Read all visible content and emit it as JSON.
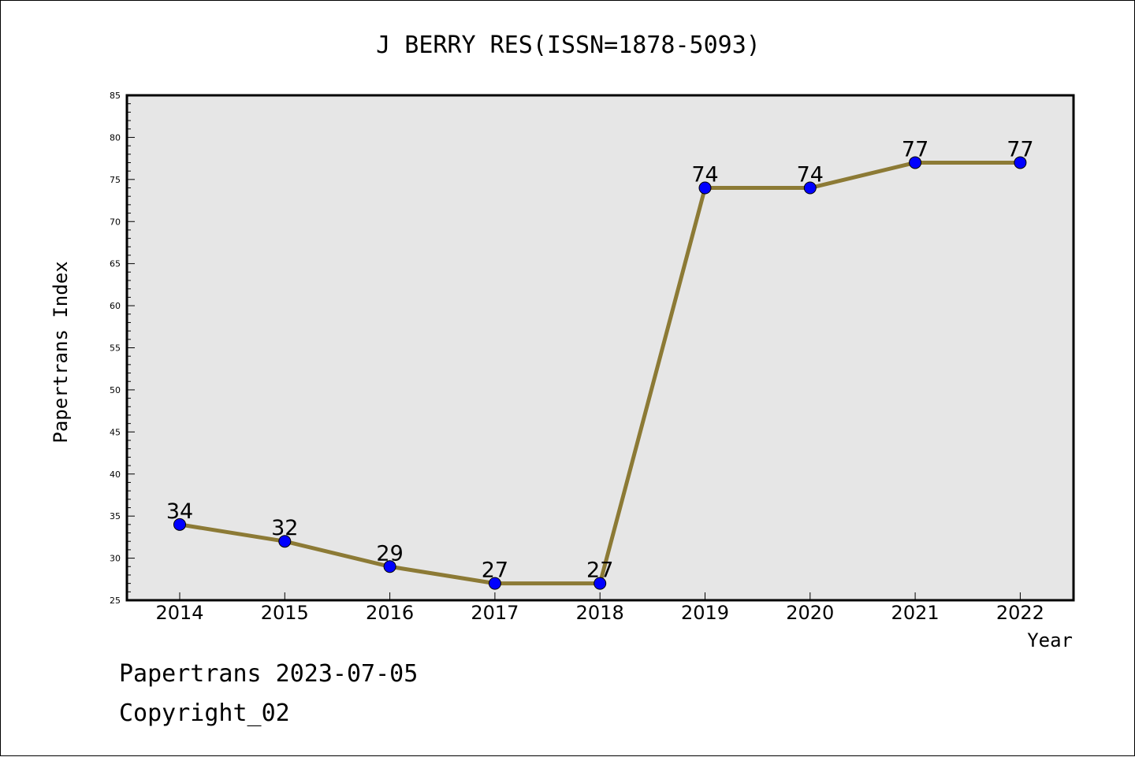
{
  "footer": {
    "stamp": "Papertrans 2023-07-05",
    "copyright": "Copyright_02"
  },
  "colors": {
    "plot_background": "#e6e6e6",
    "line": "#8c7a35",
    "marker": "#0000ff",
    "frame": "#000000"
  },
  "chart_data": {
    "type": "line",
    "title": "J BERRY RES(ISSN=1878-5093)",
    "xlabel": "Year",
    "ylabel": "Papertrans Index",
    "x": [
      "2014",
      "2015",
      "2016",
      "2017",
      "2018",
      "2019",
      "2020",
      "2021",
      "2022"
    ],
    "series": [
      {
        "values": [
          34,
          32,
          29,
          27,
          27,
          74,
          74,
          77,
          77
        ]
      }
    ],
    "data_labels": [
      "34",
      "32",
      "29",
      "27",
      "27",
      "74",
      "74",
      "77",
      "77"
    ],
    "ylim": [
      25,
      85
    ],
    "yticks": [
      25,
      30,
      35,
      40,
      45,
      50,
      55,
      60,
      65,
      70,
      75,
      80,
      85
    ],
    "grid": false,
    "legend": "none"
  }
}
